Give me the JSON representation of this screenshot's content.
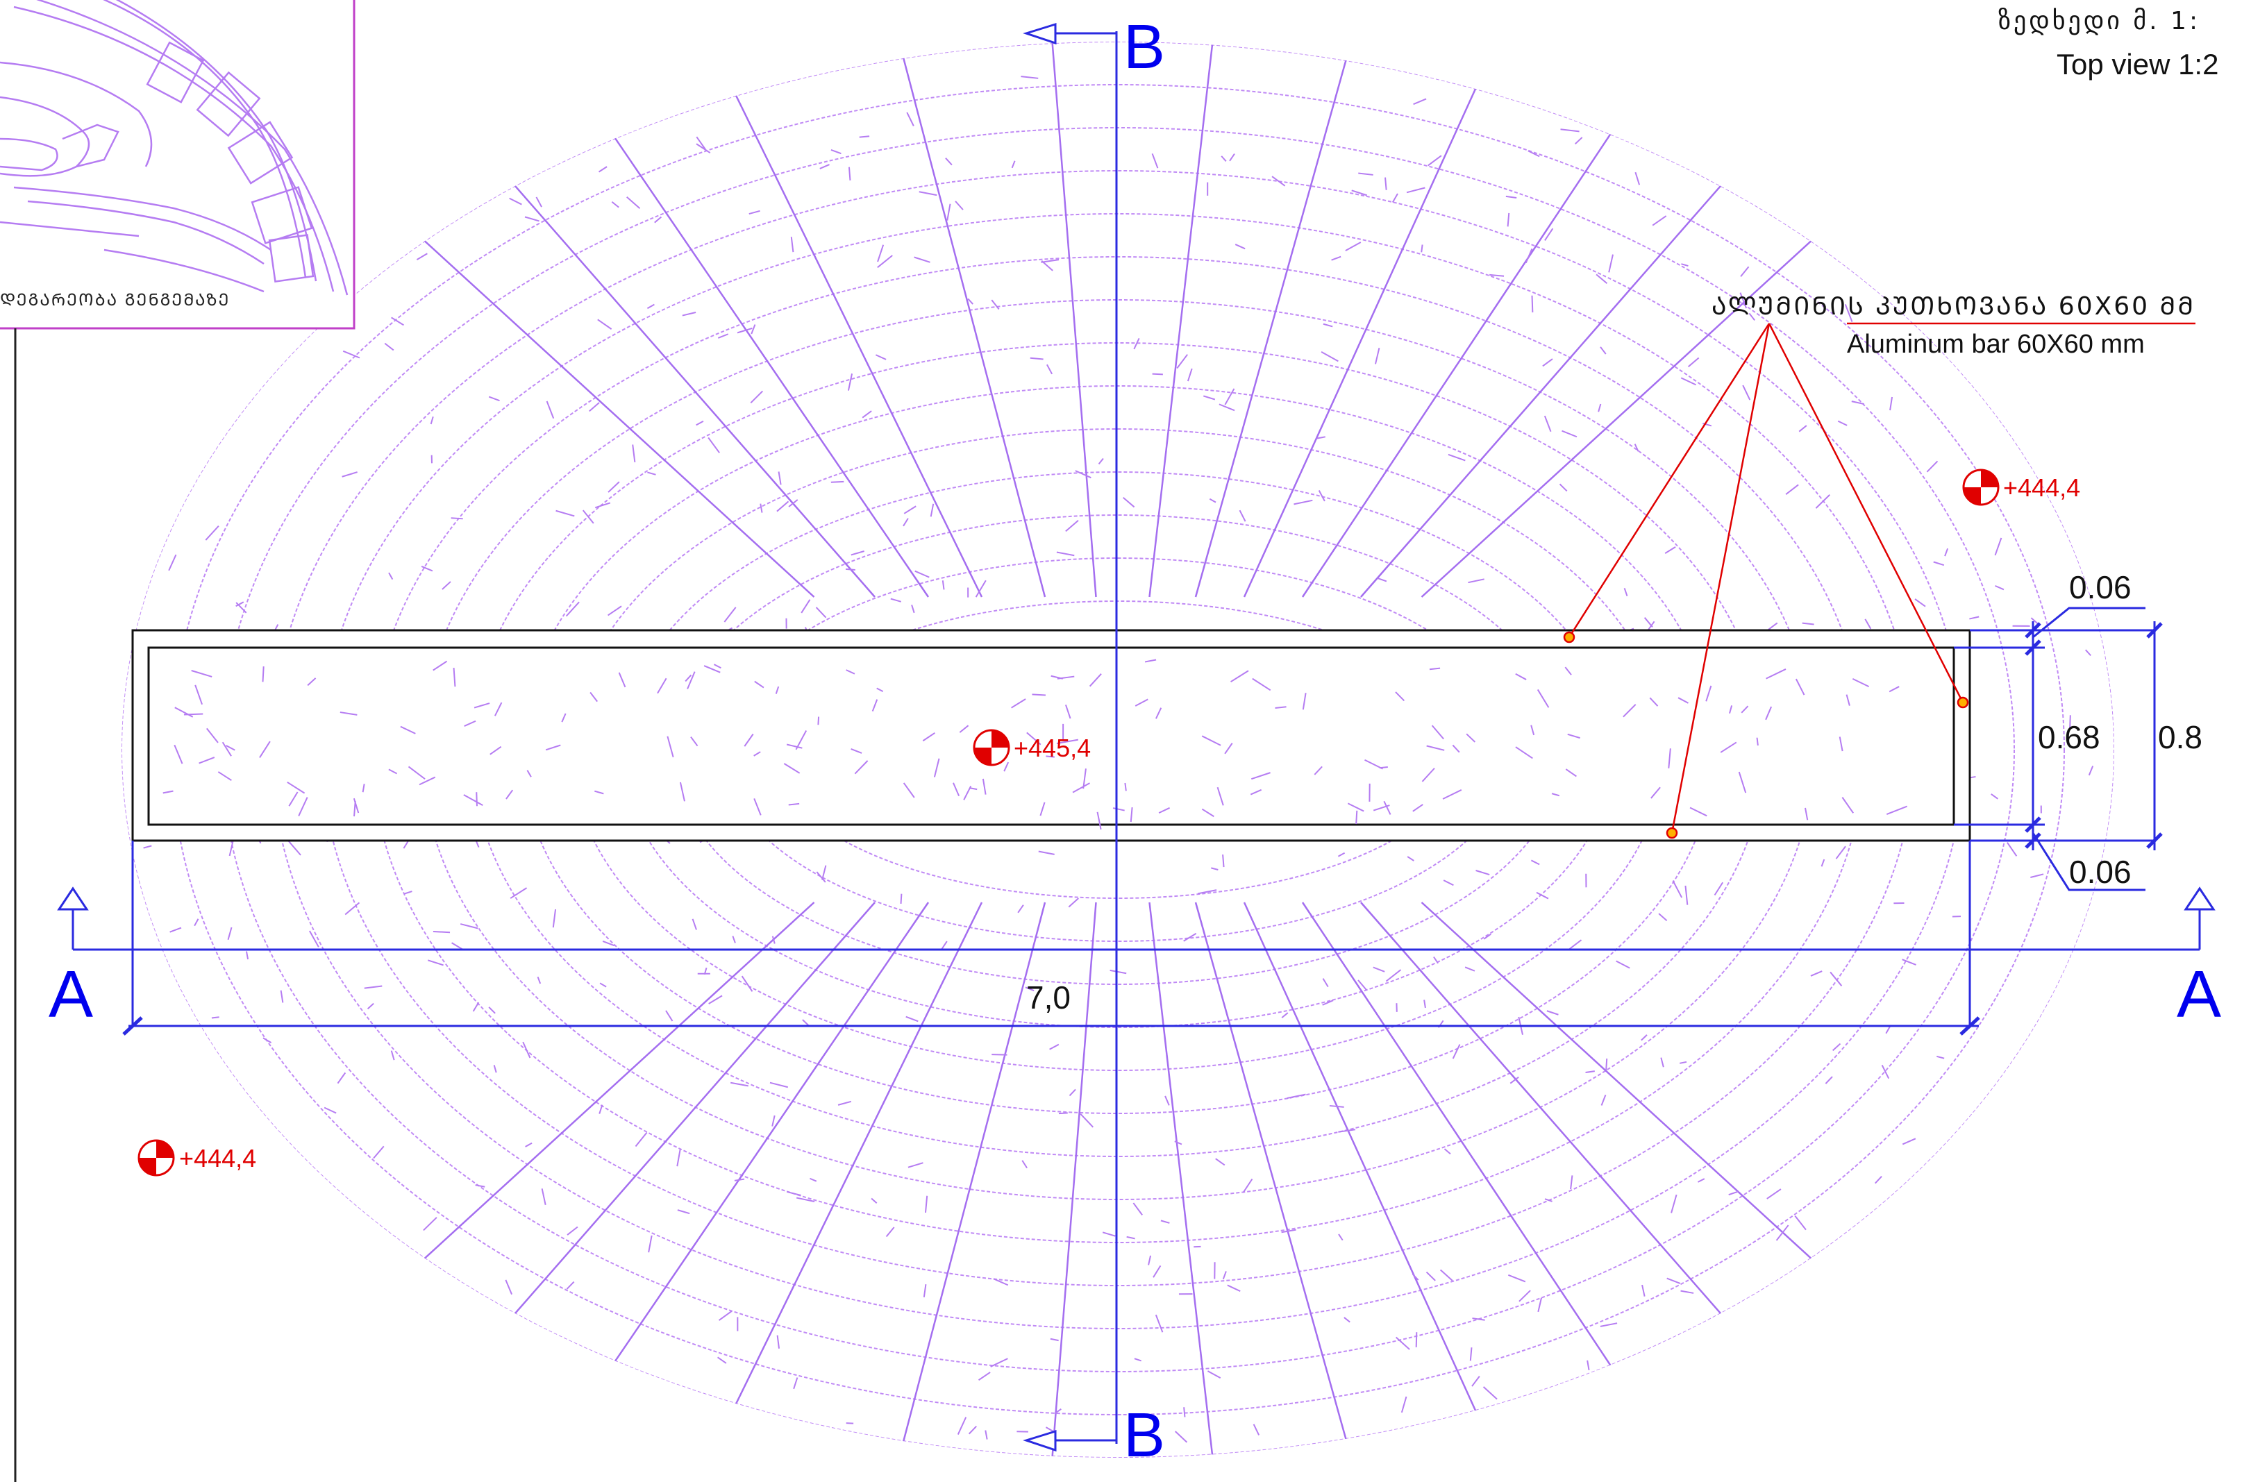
{
  "title_block": {
    "title_georgian": "ზედხედი მ. 1:",
    "title_english": "Top view 1:2"
  },
  "inset": {
    "caption": "ᲓᲔᲒᲐᲠᲔᲝᲑᲐ ᲒᲔᲜᲒᲔᲛᲐᲖᲔ"
  },
  "callout": {
    "label_georgian": "ᲐᲚᲣᲛᲘᲜᲘᲡ ᲙᲣᲗᲮᲝᲕᲐᲜᲐ 60X60 ᲛᲛ",
    "label_english": "Aluminum bar 60X60 mm"
  },
  "sections": {
    "a_left": "A",
    "a_right": "A",
    "b_top": "B",
    "b_bottom": "B"
  },
  "elevations": {
    "center": "+445,4",
    "upper_right": "+444,4",
    "lower_left": "+444,4"
  },
  "dimensions": {
    "length": "7,0",
    "inner_width": "0.68",
    "outer_width": "0.8",
    "wall_top": "0.06",
    "wall_bottom": "0.06"
  },
  "colors": {
    "hatch": "#b57cf2",
    "dimension": "#0000ee",
    "annotation": "#ee0000",
    "outline": "#111111"
  }
}
